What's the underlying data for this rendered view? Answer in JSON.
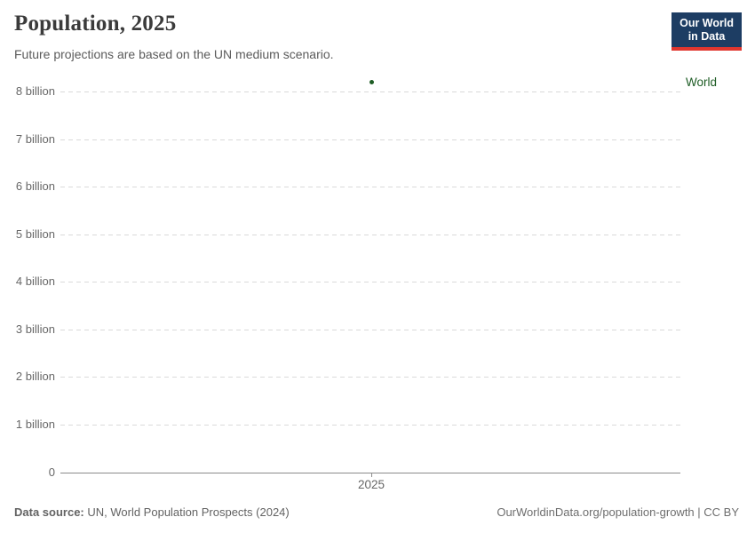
{
  "header": {
    "title": "Population, 2025",
    "subtitle": "Future projections are based on the UN medium scenario.",
    "logo": {
      "line1": "Our World",
      "line2": "in Data"
    }
  },
  "chart_data": {
    "type": "scatter",
    "title": "Population, 2025",
    "subtitle": "Future projections are based on the UN medium scenario.",
    "series": [
      {
        "name": "World",
        "x": [
          2025
        ],
        "values_billion": [
          8.2
        ],
        "color": "#1d5c24"
      }
    ],
    "x_tick_labels": [
      "2025"
    ],
    "y_tick_values": [
      0,
      1,
      2,
      3,
      4,
      5,
      6,
      7,
      8
    ],
    "y_tick_labels": [
      "0",
      "1 billion",
      "2 billion",
      "3 billion",
      "4 billion",
      "5 billion",
      "6 billion",
      "7 billion",
      "8 billion"
    ],
    "ylim": [
      0,
      8.55
    ],
    "grid": "horizontal-dashed",
    "legend_position": "right-of-plot"
  },
  "footer": {
    "source_label": "Data source:",
    "source_text": " UN, World Population Prospects (2024)",
    "credit": "OurWorldinData.org/population-growth | CC BY"
  },
  "colors": {
    "series_world": "#1d5c24",
    "logo_background": "#1d3d63",
    "logo_accent": "#e0362e",
    "gridline": "#dadada",
    "axis": "#8a8a8a",
    "tick_text": "#676767"
  }
}
